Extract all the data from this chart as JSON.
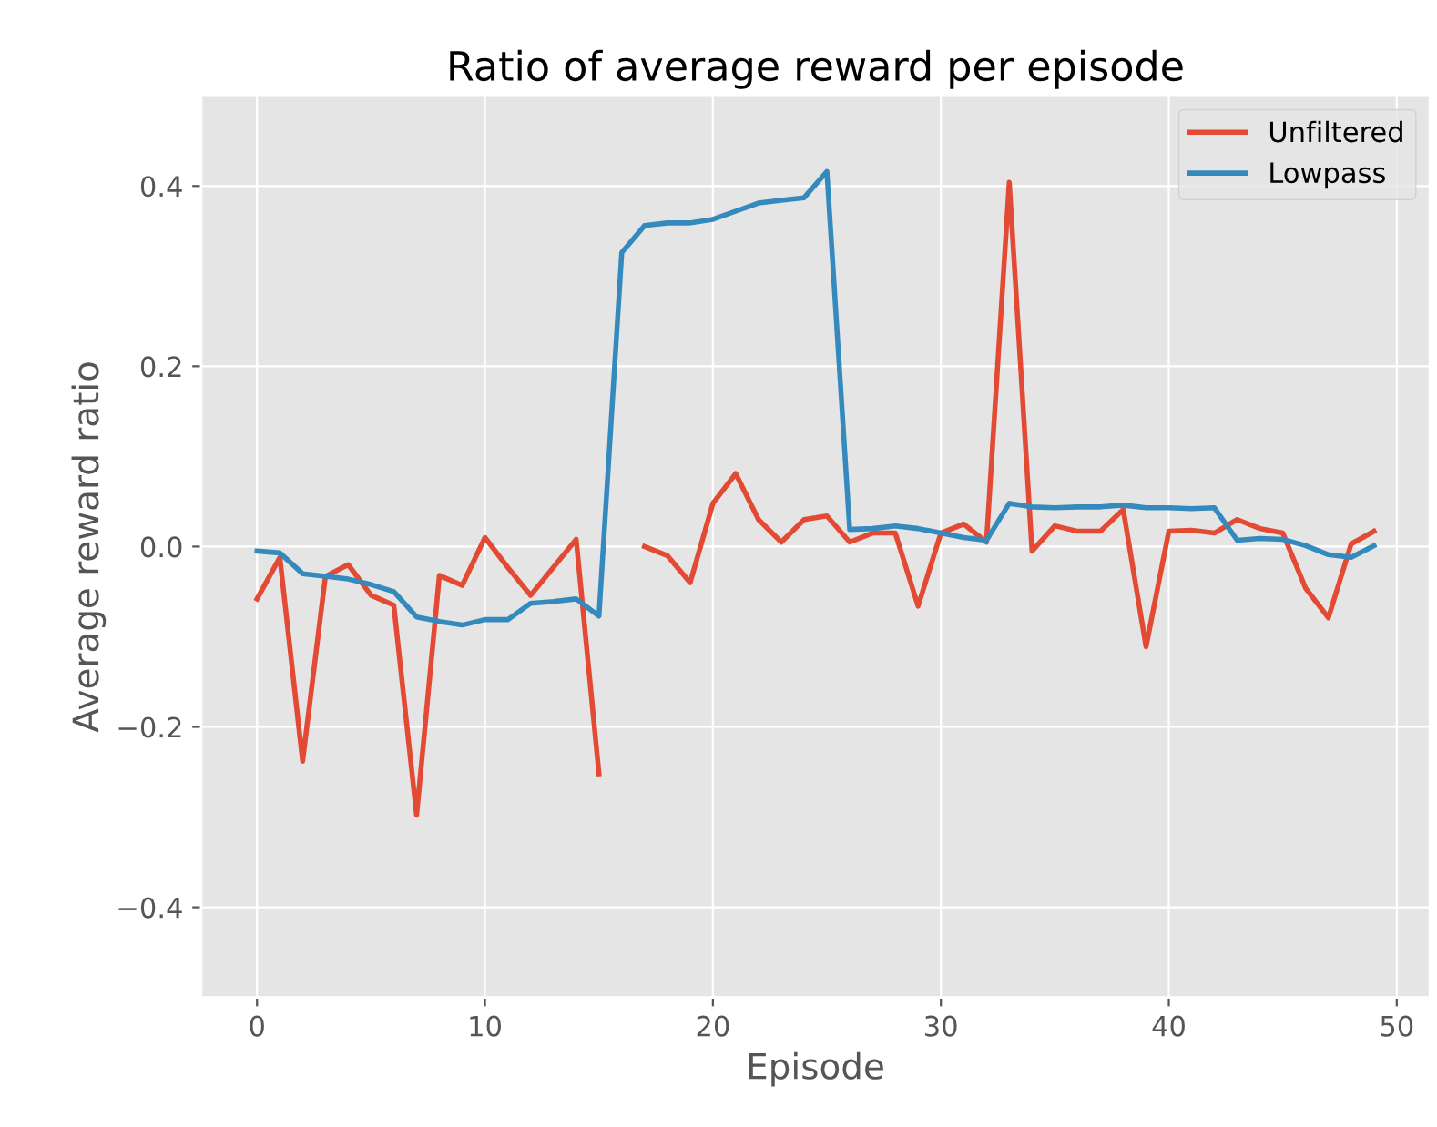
{
  "chart_data": {
    "type": "line",
    "title": "Ratio of average reward per episode",
    "xlabel": "Episode",
    "ylabel": "Average reward ratio",
    "x": [
      0,
      1,
      2,
      3,
      4,
      5,
      6,
      7,
      8,
      9,
      10,
      11,
      12,
      13,
      14,
      15,
      16,
      17,
      18,
      19,
      20,
      21,
      22,
      23,
      24,
      25,
      26,
      27,
      28,
      29,
      30,
      31,
      32,
      33,
      34,
      35,
      36,
      37,
      38,
      39,
      40,
      41,
      42,
      43,
      44,
      45,
      46,
      47,
      48,
      49
    ],
    "series": [
      {
        "name": "Unfiltered",
        "color": "#e24a33",
        "values": [
          -0.058,
          -0.012,
          -0.238,
          -0.033,
          -0.02,
          -0.054,
          -0.065,
          -0.298,
          -0.032,
          -0.043,
          0.01,
          -0.023,
          -0.054,
          -0.023,
          0.008,
          -0.252,
          null,
          0.0,
          -0.01,
          -0.04,
          0.048,
          0.081,
          0.03,
          0.005,
          0.03,
          0.034,
          0.005,
          0.015,
          0.015,
          -0.066,
          0.015,
          0.025,
          0.005,
          0.404,
          -0.005,
          0.023,
          0.017,
          0.017,
          0.041,
          -0.111,
          0.017,
          0.018,
          0.015,
          0.03,
          0.02,
          0.015,
          -0.046,
          -0.079,
          0.003,
          0.017
        ]
      },
      {
        "name": "Lowpass",
        "color": "#348abd",
        "values": [
          -0.005,
          -0.007,
          -0.03,
          -0.033,
          -0.036,
          -0.042,
          -0.05,
          -0.078,
          -0.083,
          -0.087,
          -0.081,
          -0.081,
          -0.063,
          -0.061,
          -0.058,
          -0.077,
          0.326,
          0.356,
          0.359,
          0.359,
          0.363,
          0.372,
          0.381,
          0.384,
          0.387,
          0.416,
          0.019,
          0.02,
          0.023,
          0.02,
          0.015,
          0.01,
          0.007,
          0.048,
          0.044,
          0.043,
          0.044,
          0.044,
          0.046,
          0.043,
          0.043,
          0.042,
          0.043,
          0.007,
          0.009,
          0.008,
          0.001,
          -0.009,
          -0.012,
          0.001
        ]
      }
    ],
    "xlim": [
      -2.45,
      51.45
    ],
    "xticks": [
      0,
      10,
      20,
      30,
      40,
      50
    ],
    "ylim": [
      -0.5,
      0.5
    ],
    "yticks": [
      {
        "value": -0.4,
        "label": "−0.4"
      },
      {
        "value": -0.2,
        "label": "−0.2"
      },
      {
        "value": 0,
        "label": "0.0"
      },
      0.2,
      0.4
    ],
    "grid": true,
    "legend": "top right",
    "line_style": "solid",
    "marker": "none"
  }
}
